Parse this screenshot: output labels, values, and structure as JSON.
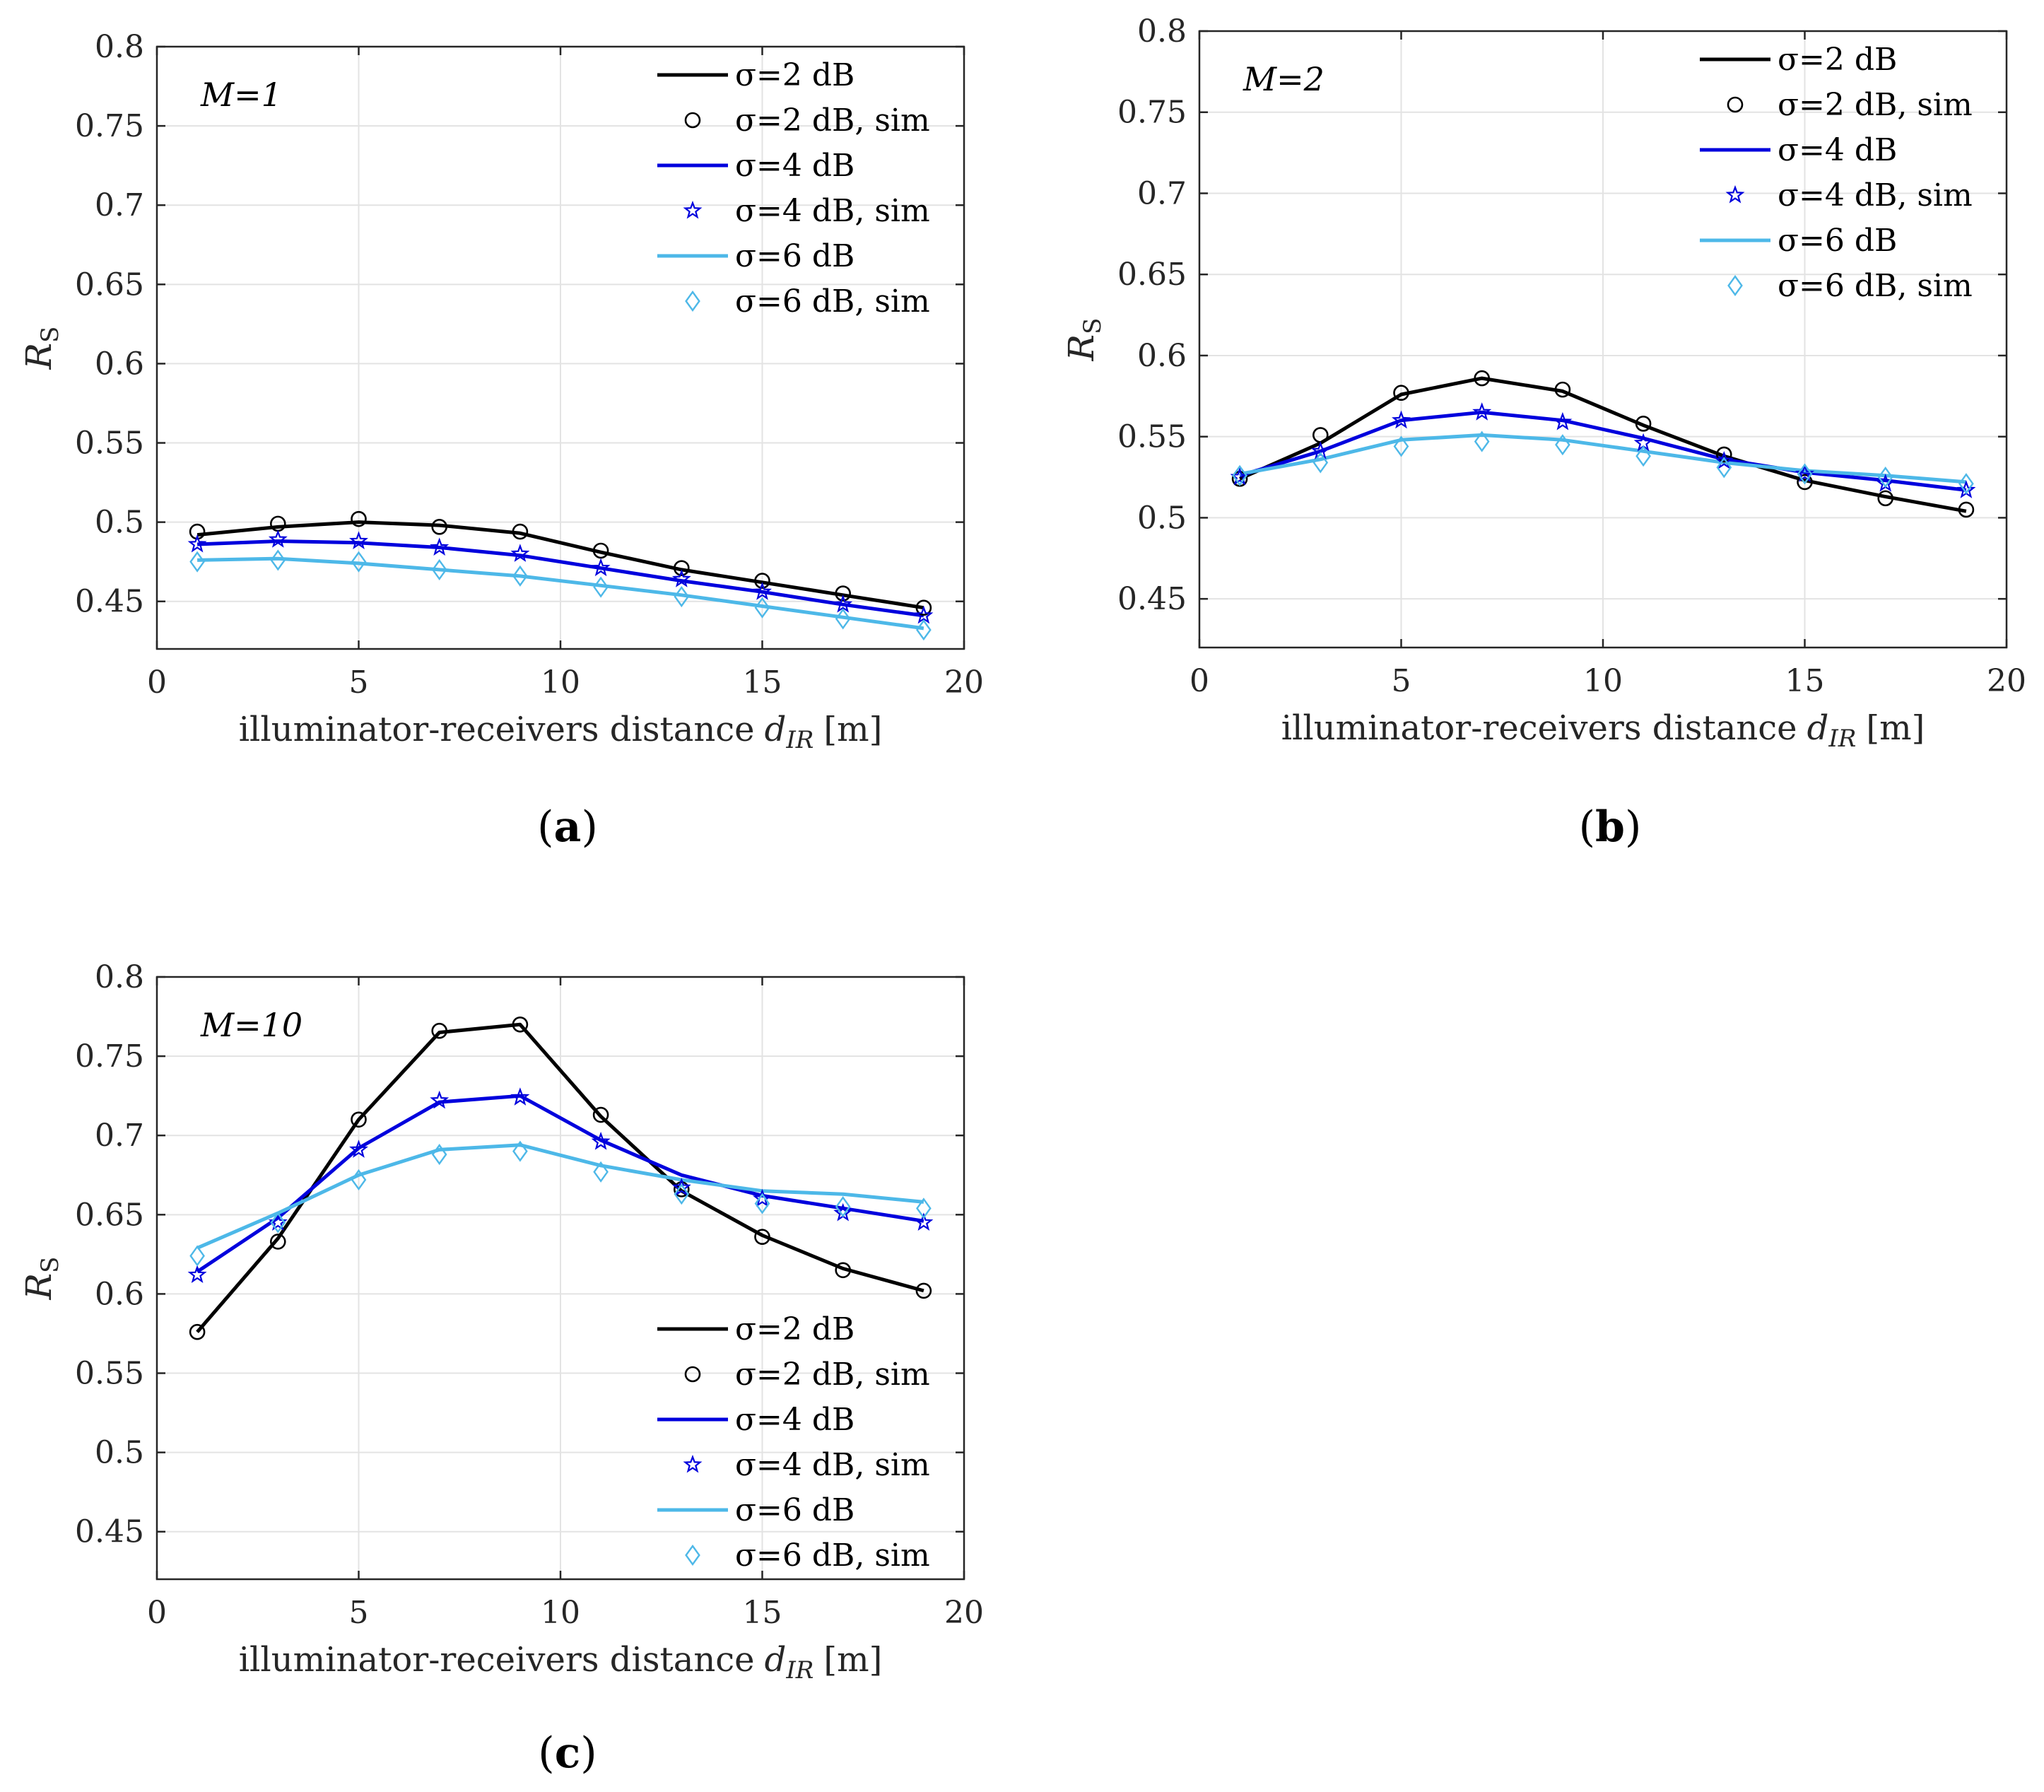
{
  "chart_data": [
    {
      "type": "line",
      "id": "a",
      "caption_letter": "a",
      "annotation": "M=1",
      "xlabel": "illuminator-receivers distance",
      "xlabel_symbol": "d",
      "xlabel_sub": "IR",
      "xlabel_unit": "[m]",
      "ylabel": "R",
      "ylabel_sub": "S",
      "xlim": [
        0,
        20
      ],
      "ylim": [
        0.42,
        0.8
      ],
      "xticks": [
        "0",
        "5",
        "10",
        "15",
        "20"
      ],
      "yticks": [
        "0.45",
        "0.5",
        "0.55",
        "0.6",
        "0.65",
        "0.7",
        "0.75",
        "0.8"
      ],
      "legend_position": "top-right",
      "x": [
        1,
        3,
        5,
        7,
        9,
        11,
        13,
        15,
        17,
        19
      ],
      "series": [
        {
          "name": "σ=2 dB",
          "style": "line",
          "color": "#000000",
          "values": [
            0.492,
            0.497,
            0.5,
            0.498,
            0.493,
            0.481,
            0.47,
            0.462,
            0.454,
            0.446
          ]
        },
        {
          "name": "σ=2 dB, sim",
          "style": "circle",
          "color": "#000000",
          "values": [
            0.494,
            0.499,
            0.502,
            0.497,
            0.494,
            0.482,
            0.471,
            0.463,
            0.455,
            0.446
          ]
        },
        {
          "name": "σ=4 dB",
          "style": "line",
          "color": "#0000dd",
          "values": [
            0.486,
            0.488,
            0.487,
            0.484,
            0.479,
            0.471,
            0.463,
            0.456,
            0.448,
            0.441
          ]
        },
        {
          "name": "σ=4 dB, sim",
          "style": "star",
          "color": "#0000dd",
          "values": [
            0.486,
            0.489,
            0.488,
            0.484,
            0.48,
            0.471,
            0.464,
            0.456,
            0.448,
            0.441
          ]
        },
        {
          "name": "σ=6 dB",
          "style": "line",
          "color": "#4db8e8",
          "values": [
            0.476,
            0.477,
            0.474,
            0.47,
            0.466,
            0.46,
            0.454,
            0.447,
            0.44,
            0.433
          ]
        },
        {
          "name": "σ=6 dB, sim",
          "style": "diamond",
          "color": "#4db8e8",
          "values": [
            0.475,
            0.476,
            0.475,
            0.47,
            0.466,
            0.459,
            0.453,
            0.446,
            0.439,
            0.432
          ]
        }
      ]
    },
    {
      "type": "line",
      "id": "b",
      "caption_letter": "b",
      "annotation": "M=2",
      "xlabel": "illuminator-receivers distance",
      "xlabel_symbol": "d",
      "xlabel_sub": "IR",
      "xlabel_unit": "[m]",
      "ylabel": "R",
      "ylabel_sub": "S",
      "xlim": [
        0,
        20
      ],
      "ylim": [
        0.42,
        0.8
      ],
      "xticks": [
        "0",
        "5",
        "10",
        "15",
        "20"
      ],
      "yticks": [
        "0.45",
        "0.5",
        "0.55",
        "0.6",
        "0.65",
        "0.7",
        "0.75",
        "0.8"
      ],
      "legend_position": "top-right",
      "x": [
        1,
        3,
        5,
        7,
        9,
        11,
        13,
        15,
        17,
        19
      ],
      "series": [
        {
          "name": "σ=2 dB",
          "style": "line",
          "color": "#000000",
          "values": [
            0.524,
            0.546,
            0.576,
            0.586,
            0.578,
            0.557,
            0.538,
            0.523,
            0.513,
            0.504
          ]
        },
        {
          "name": "σ=2 dB, sim",
          "style": "circle",
          "color": "#000000",
          "values": [
            0.524,
            0.551,
            0.577,
            0.586,
            0.579,
            0.558,
            0.539,
            0.522,
            0.512,
            0.505
          ]
        },
        {
          "name": "σ=4 dB",
          "style": "line",
          "color": "#0000dd",
          "values": [
            0.526,
            0.541,
            0.56,
            0.565,
            0.56,
            0.549,
            0.536,
            0.528,
            0.523,
            0.517
          ]
        },
        {
          "name": "σ=4 dB, sim",
          "style": "star",
          "color": "#0000dd",
          "values": [
            0.525,
            0.541,
            0.56,
            0.565,
            0.559,
            0.546,
            0.535,
            0.527,
            0.521,
            0.517
          ]
        },
        {
          "name": "σ=6 dB",
          "style": "line",
          "color": "#4db8e8",
          "values": [
            0.527,
            0.536,
            0.548,
            0.551,
            0.548,
            0.541,
            0.534,
            0.529,
            0.526,
            0.522
          ]
        },
        {
          "name": "σ=6 dB, sim",
          "style": "diamond",
          "color": "#4db8e8",
          "values": [
            0.526,
            0.534,
            0.544,
            0.547,
            0.545,
            0.538,
            0.531,
            0.527,
            0.525,
            0.521
          ]
        }
      ]
    },
    {
      "type": "line",
      "id": "c",
      "caption_letter": "c",
      "annotation": "M=10",
      "xlabel": "illuminator-receivers distance",
      "xlabel_symbol": "d",
      "xlabel_sub": "IR",
      "xlabel_unit": "[m]",
      "ylabel": "R",
      "ylabel_sub": "S",
      "xlim": [
        0,
        20
      ],
      "ylim": [
        0.42,
        0.8
      ],
      "xticks": [
        "0",
        "5",
        "10",
        "15",
        "20"
      ],
      "yticks": [
        "0.45",
        "0.5",
        "0.55",
        "0.6",
        "0.65",
        "0.7",
        "0.75",
        "0.8"
      ],
      "legend_position": "bottom-right",
      "x": [
        1,
        3,
        5,
        7,
        9,
        11,
        13,
        15,
        17,
        19
      ],
      "series": [
        {
          "name": "σ=2 dB",
          "style": "line",
          "color": "#000000",
          "values": [
            0.576,
            0.635,
            0.71,
            0.765,
            0.77,
            0.712,
            0.665,
            0.637,
            0.616,
            0.602
          ]
        },
        {
          "name": "σ=2 dB, sim",
          "style": "circle",
          "color": "#000000",
          "values": [
            0.576,
            0.633,
            0.71,
            0.766,
            0.77,
            0.713,
            0.666,
            0.636,
            0.615,
            0.602
          ]
        },
        {
          "name": "σ=4 dB",
          "style": "line",
          "color": "#0000dd",
          "values": [
            0.614,
            0.648,
            0.692,
            0.721,
            0.725,
            0.697,
            0.675,
            0.662,
            0.654,
            0.646
          ]
        },
        {
          "name": "σ=4 dB, sim",
          "style": "star",
          "color": "#0000dd",
          "values": [
            0.612,
            0.645,
            0.691,
            0.722,
            0.724,
            0.696,
            0.667,
            0.66,
            0.651,
            0.645
          ]
        },
        {
          "name": "σ=6 dB",
          "style": "line",
          "color": "#4db8e8",
          "values": [
            0.629,
            0.651,
            0.675,
            0.691,
            0.694,
            0.681,
            0.672,
            0.665,
            0.663,
            0.658
          ]
        },
        {
          "name": "σ=6 dB, sim",
          "style": "diamond",
          "color": "#4db8e8",
          "values": [
            0.624,
            0.645,
            0.672,
            0.688,
            0.69,
            0.677,
            0.663,
            0.657,
            0.655,
            0.654
          ]
        }
      ]
    }
  ]
}
